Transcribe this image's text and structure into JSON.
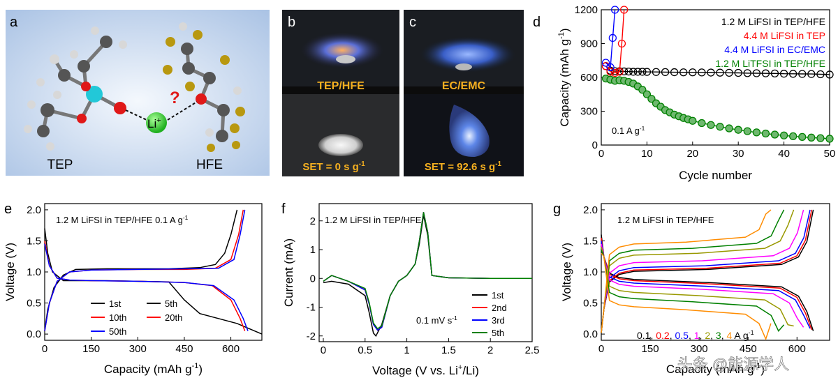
{
  "panel_letters": [
    "a",
    "b",
    "c",
    "d",
    "e",
    "f",
    "g"
  ],
  "panel_a": {
    "left_label": "TEP",
    "right_label": "HFE",
    "ion_label": "Li",
    "ion_sup": "+",
    "question_mark": "?"
  },
  "panel_b": {
    "top_label": "TEP/HFE",
    "bottom_label": "SET = 0 s g",
    "bottom_sup": "-1"
  },
  "panel_c": {
    "top_label": "EC/EMC",
    "bottom_label": "SET = 92.6 s g",
    "bottom_sup": "-1"
  },
  "watermark": "头条 @能源学人",
  "chart_data": [
    {
      "id": "d",
      "type": "scatter",
      "xlabel": "Cycle number",
      "ylabel": "Capacity (mAh g",
      "ylabel_sup": "-1",
      "ylabel_tail": ")",
      "xlim": [
        0,
        50
      ],
      "ylim": [
        0,
        1200
      ],
      "xticks": [
        0,
        10,
        20,
        30,
        40,
        50
      ],
      "yticks": [
        0,
        300,
        600,
        900,
        1200
      ],
      "annotation": "0.1 A g",
      "annotation_sup": "-1",
      "legend_position": "top-right",
      "series": [
        {
          "name": "1.2 M LiFSI in TEP/HFE",
          "color": "#000000",
          "x": [
            1,
            2,
            3,
            4,
            5,
            6,
            7,
            8,
            9,
            10,
            12,
            14,
            16,
            18,
            20,
            22,
            24,
            26,
            28,
            30,
            32,
            34,
            36,
            38,
            40,
            42,
            44,
            46,
            48,
            50
          ],
          "y": [
            700,
            660,
            655,
            655,
            653,
            652,
            650,
            650,
            650,
            649,
            648,
            647,
            646,
            645,
            645,
            644,
            643,
            642,
            641,
            640,
            638,
            637,
            636,
            635,
            633,
            632,
            631,
            630,
            628,
            625
          ]
        },
        {
          "name": "4.4 M LiFSI in TEP",
          "color": "#ff0000",
          "x": [
            1,
            2,
            3,
            4,
            4.5,
            5
          ],
          "y": [
            700,
            650,
            640,
            650,
            900,
            1200
          ]
        },
        {
          "name": "4.4 M LiFSI in EC/EMC",
          "color": "#0000ff",
          "x": [
            1,
            2,
            2.5,
            3
          ],
          "y": [
            730,
            690,
            950,
            1200
          ]
        },
        {
          "name": "1.2 M LiTFSI in TEP/HFE",
          "color": "#008000",
          "x": [
            1,
            2,
            3,
            4,
            5,
            6,
            7,
            8,
            9,
            10,
            11,
            12,
            13,
            14,
            15,
            16,
            17,
            18,
            19,
            20,
            22,
            24,
            26,
            28,
            30,
            32,
            34,
            36,
            38,
            40,
            42,
            44,
            46,
            48,
            50
          ],
          "y": [
            590,
            580,
            570,
            575,
            570,
            560,
            545,
            520,
            490,
            450,
            410,
            370,
            340,
            310,
            290,
            270,
            255,
            240,
            228,
            215,
            195,
            178,
            162,
            148,
            135,
            123,
            112,
            102,
            93,
            85,
            78,
            72,
            66,
            61,
            56
          ]
        }
      ]
    },
    {
      "id": "e",
      "type": "line",
      "xlabel": "Capacity (mAh g",
      "xlabel_sup": "-1",
      "xlabel_tail": ")",
      "ylabel": "Voltage (V)",
      "xlim": [
        0,
        700
      ],
      "ylim": [
        -0.1,
        2.1
      ],
      "xticks": [
        0,
        150,
        300,
        450,
        600
      ],
      "yticks": [
        0.0,
        0.5,
        1.0,
        1.5,
        2.0
      ],
      "annotation": "1.2 M LiFSI in TEP/HFE 0.1 A g",
      "annotation_sup": "-1",
      "legend": [
        {
          "name": "1st",
          "color": "#000000"
        },
        {
          "name": "5th",
          "color": "#000000"
        },
        {
          "name": "10th",
          "color": "#ff0000"
        },
        {
          "name": "20th",
          "color": "#ff0000"
        },
        {
          "name": "50th",
          "color": "#0000ff"
        }
      ],
      "series": [
        {
          "name": "1st discharge",
          "color": "#000000",
          "x": [
            0,
            10,
            25,
            60,
            100,
            200,
            300,
            400,
            450,
            500,
            560,
            620,
            700
          ],
          "y": [
            1.7,
            1.3,
            1.0,
            0.86,
            0.86,
            0.86,
            0.85,
            0.84,
            0.55,
            0.33,
            0.25,
            0.17,
            0.0
          ]
        },
        {
          "name": "5th charge",
          "color": "#000000",
          "x": [
            0,
            10,
            30,
            60,
            100,
            200,
            300,
            400,
            500,
            550,
            580,
            600,
            620
          ],
          "y": [
            0.05,
            0.4,
            0.75,
            0.95,
            1.04,
            1.05,
            1.05,
            1.05,
            1.07,
            1.12,
            1.3,
            1.6,
            2.0
          ]
        },
        {
          "name": "10th discharge",
          "color": "#ff0000",
          "x": [
            0,
            15,
            40,
            80,
            150,
            300,
            450,
            540,
            600,
            630,
            645
          ],
          "y": [
            1.5,
            1.1,
            0.9,
            0.87,
            0.86,
            0.85,
            0.83,
            0.78,
            0.55,
            0.25,
            0.05
          ]
        },
        {
          "name": "20th charge",
          "color": "#ff0000",
          "x": [
            0,
            15,
            40,
            80,
            150,
            300,
            450,
            550,
            600,
            625,
            640
          ],
          "y": [
            0.05,
            0.5,
            0.85,
            1.0,
            1.03,
            1.04,
            1.04,
            1.06,
            1.2,
            1.6,
            2.0
          ]
        },
        {
          "name": "50th discharge",
          "color": "#0000ff",
          "x": [
            0,
            15,
            40,
            80,
            150,
            300,
            450,
            545,
            610,
            640,
            655
          ],
          "y": [
            1.45,
            1.1,
            0.9,
            0.87,
            0.86,
            0.85,
            0.83,
            0.78,
            0.55,
            0.25,
            0.05
          ]
        },
        {
          "name": "50th charge",
          "color": "#0000ff",
          "x": [
            0,
            15,
            40,
            80,
            150,
            300,
            450,
            560,
            610,
            630,
            645
          ],
          "y": [
            0.05,
            0.5,
            0.85,
            1.0,
            1.03,
            1.04,
            1.05,
            1.06,
            1.2,
            1.6,
            2.0
          ]
        }
      ]
    },
    {
      "id": "f",
      "type": "line",
      "xlabel": "Voltage (V vs. Li",
      "xlabel_sup": "+",
      "xlabel_tail": "/Li)",
      "ylabel": "Current (mA)",
      "xlim": [
        -0.05,
        2.5
      ],
      "ylim": [
        -2.2,
        2.6
      ],
      "xticks": [
        0.0,
        0.5,
        1.0,
        1.5,
        2.0,
        2.5
      ],
      "yticks": [
        -2,
        -1,
        0,
        1,
        2
      ],
      "annotation": "1.2 M LiFSI in TEP/HFE",
      "annotation2": "0.1 mV s",
      "annotation2_sup": "-1",
      "legend_position": "bottom-right",
      "series": [
        {
          "name": "1st",
          "color": "#000000",
          "x": [
            0,
            0.1,
            0.3,
            0.5,
            0.55,
            0.6,
            0.63,
            0.7,
            0.8,
            0.9,
            1.0,
            1.1,
            1.15,
            1.2,
            1.25,
            1.3,
            1.5,
            2.0,
            2.5
          ],
          "y": [
            -0.15,
            -0.1,
            -0.2,
            -0.6,
            -1.2,
            -1.9,
            -2.0,
            -1.6,
            -0.6,
            -0.1,
            0.1,
            0.5,
            1.2,
            2.2,
            1.5,
            0.1,
            0.02,
            0.0,
            0.0
          ]
        },
        {
          "name": "2nd",
          "color": "#ff0000",
          "x": [
            0,
            0.1,
            0.3,
            0.5,
            0.55,
            0.6,
            0.65,
            0.7,
            0.8,
            0.9,
            1.0,
            1.1,
            1.15,
            1.2,
            1.25,
            1.3,
            1.5,
            2.0,
            2.5
          ],
          "y": [
            -0.1,
            0.1,
            -0.1,
            -0.4,
            -0.9,
            -1.6,
            -1.8,
            -1.7,
            -0.6,
            -0.1,
            0.1,
            0.5,
            1.3,
            2.3,
            1.6,
            0.1,
            0.02,
            0.0,
            0.0
          ]
        },
        {
          "name": "3rd",
          "color": "#0000ff",
          "x": [
            0,
            0.1,
            0.3,
            0.5,
            0.55,
            0.6,
            0.65,
            0.7,
            0.8,
            0.9,
            1.0,
            1.1,
            1.15,
            1.2,
            1.25,
            1.3,
            1.5,
            2.0,
            2.5
          ],
          "y": [
            -0.1,
            0.1,
            -0.1,
            -0.4,
            -0.9,
            -1.6,
            -1.8,
            -1.7,
            -0.6,
            -0.1,
            0.1,
            0.5,
            1.3,
            2.3,
            1.6,
            0.1,
            0.02,
            0.0,
            0.0
          ]
        },
        {
          "name": "5th",
          "color": "#008000",
          "x": [
            0,
            0.1,
            0.3,
            0.5,
            0.55,
            0.6,
            0.65,
            0.7,
            0.8,
            0.9,
            1.0,
            1.1,
            1.15,
            1.2,
            1.25,
            1.3,
            1.5,
            2.0,
            2.5
          ],
          "y": [
            -0.1,
            0.1,
            -0.1,
            -0.35,
            -0.85,
            -1.55,
            -1.75,
            -1.65,
            -0.6,
            -0.1,
            0.1,
            0.5,
            1.3,
            2.3,
            1.6,
            0.1,
            0.02,
            0.0,
            0.0
          ]
        }
      ]
    },
    {
      "id": "g",
      "type": "line",
      "xlabel": "Capacity (mAh g",
      "xlabel_sup": "-1",
      "xlabel_tail": ")",
      "ylabel": "Voltage (V)",
      "xlim": [
        0,
        700
      ],
      "ylim": [
        -0.1,
        2.1
      ],
      "xticks": [
        0,
        150,
        300,
        450,
        600
      ],
      "yticks": [
        0.0,
        0.5,
        1.0,
        1.5,
        2.0
      ],
      "annotation": "1.2 M LiFSI in TEP/HFE",
      "legend_caption_prefix": "0.1, ",
      "legend_caption_unit": " A g",
      "legend_caption_sup": "-1",
      "legend_position": "bottom-center",
      "series": [
        {
          "name": "0.1",
          "color": "#000000",
          "capacity": 650,
          "discharge_plateau": 0.86,
          "charge_plateau": 1.04
        },
        {
          "name": "0.2",
          "color": "#ff0000",
          "capacity": 645,
          "discharge_plateau": 0.84,
          "charge_plateau": 1.06
        },
        {
          "name": "0.5",
          "color": "#0000ff",
          "capacity": 640,
          "discharge_plateau": 0.8,
          "charge_plateau": 1.1
        },
        {
          "name": "1",
          "color": "#ff00ff",
          "capacity": 620,
          "discharge_plateau": 0.75,
          "charge_plateau": 1.18
        },
        {
          "name": "2",
          "color": "#999900",
          "capacity": 590,
          "discharge_plateau": 0.65,
          "charge_plateau": 1.3
        },
        {
          "name": "3",
          "color": "#008000",
          "capacity": 560,
          "discharge_plateau": 0.55,
          "charge_plateau": 1.38
        },
        {
          "name": "4",
          "color": "#ff8c00",
          "capacity": 520,
          "discharge_plateau": 0.42,
          "charge_plateau": 1.48
        }
      ]
    }
  ]
}
